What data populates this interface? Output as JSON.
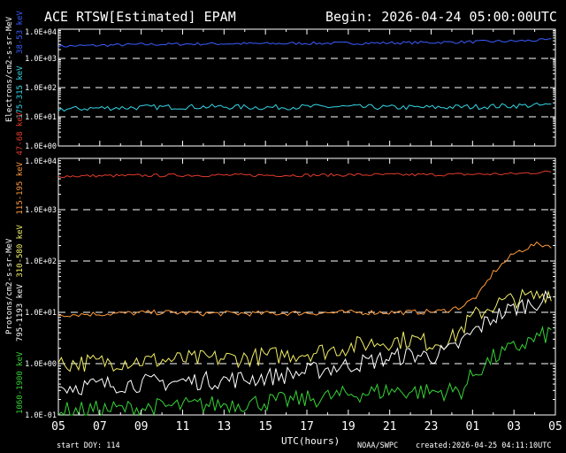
{
  "header": {
    "title": "ACE RTSW[Estimated] EPAM",
    "begin": "Begin: 2026-04-24 05:00:00UTC"
  },
  "footer": {
    "start_doy": "start DOY:  114",
    "agency": "NOAA/SWPC",
    "created": "created:2026-04-25 04:11:10UTC"
  },
  "colors": {
    "e_low": "#3a5cff",
    "e_high": "#33d6e6",
    "p1": "#e23a2a",
    "p2": "#ff9a3c",
    "p3": "#f2ee66",
    "p4": "#ffffff",
    "p5": "#35d435"
  },
  "chart_data": [
    {
      "type": "line",
      "name": "electrons",
      "ylabel": "Electrons/cm2-s-sr-MeV",
      "yscale": "log",
      "ylim": [
        1,
        10000
      ],
      "ytick_labels": [
        "1.0E+00",
        "1.0E+01",
        "1.0E+02",
        "1.0E+03",
        "1.0E+04"
      ],
      "grid_y": [
        10,
        100,
        1000
      ],
      "x_range_hours": [
        5,
        29
      ],
      "series": [
        {
          "name": "38-53 keV",
          "color": "#3a5cff",
          "x": [
            5,
            7,
            9,
            11,
            13,
            15,
            17,
            19,
            21,
            23,
            25,
            27,
            28.8
          ],
          "y": [
            2600,
            2800,
            3000,
            3100,
            3200,
            3200,
            3300,
            3300,
            3400,
            3500,
            3700,
            3900,
            4300
          ]
        },
        {
          "name": "175-315 keV",
          "color": "#33d6e6",
          "x": [
            5,
            7,
            9,
            11,
            13,
            15,
            17,
            19,
            21,
            23,
            25,
            27,
            28.8
          ],
          "y": [
            18,
            20,
            21,
            22,
            22,
            21,
            22,
            22,
            21,
            21,
            22,
            24,
            25
          ]
        }
      ]
    },
    {
      "type": "line",
      "name": "protons",
      "ylabel": "Protons/cm2-s-sr-MeV",
      "yscale": "log",
      "ylim": [
        0.1,
        10000
      ],
      "ytick_labels": [
        "1.0E-01",
        "1.0E+00",
        "1.0E+01",
        "1.0E+02",
        "1.0E+03",
        "1.0E+04"
      ],
      "grid_y": [
        1,
        10,
        100,
        1000
      ],
      "xlabel": "UTC(hours)",
      "x_range_hours": [
        5,
        29
      ],
      "xtick_labels": [
        "05",
        "07",
        "09",
        "11",
        "13",
        "15",
        "17",
        "19",
        "21",
        "23",
        "01",
        "03",
        "05"
      ],
      "series": [
        {
          "name": "47-68 keV",
          "color": "#e23a2a",
          "x": [
            5,
            8,
            11,
            14,
            17,
            20,
            23,
            25,
            27,
            28.8
          ],
          "y": [
            4500,
            4600,
            4700,
            4700,
            4700,
            4800,
            4800,
            4900,
            5000,
            5500
          ]
        },
        {
          "name": "115-195 keV",
          "color": "#ff9a3c",
          "x": [
            5,
            8,
            10,
            12,
            15,
            18,
            20,
            22,
            23.5,
            24.5,
            25.3,
            26,
            27,
            28,
            28.8
          ],
          "y": [
            9,
            9.5,
            10,
            9.5,
            9.5,
            9.8,
            10,
            10,
            10.5,
            13,
            22,
            60,
            140,
            210,
            200
          ]
        },
        {
          "name": "310-580 keV",
          "color": "#f2ee66",
          "x": [
            5,
            8,
            11,
            14,
            16,
            18,
            20,
            22,
            23,
            24,
            25,
            26,
            27,
            28,
            28.8
          ],
          "y": [
            1,
            1.1,
            1.2,
            1.3,
            1.5,
            1.8,
            2.5,
            3,
            2.5,
            3,
            8,
            14,
            18,
            20,
            25
          ]
        },
        {
          "name": "795-1193 keV",
          "color": "#ffffff",
          "x": [
            5,
            8,
            11,
            14,
            16,
            18,
            20,
            22,
            23,
            24,
            25,
            26,
            27,
            28,
            28.8
          ],
          "y": [
            0.35,
            0.4,
            0.45,
            0.5,
            0.6,
            0.8,
            1.1,
            1.5,
            1.4,
            1.8,
            4,
            8,
            12,
            16,
            18
          ]
        },
        {
          "name": "1060-1900 keV",
          "color": "#35d435",
          "x": [
            5,
            8,
            11,
            14,
            17,
            19,
            21,
            23,
            24.5,
            25,
            26,
            27,
            28,
            28.8
          ],
          "y": [
            0.12,
            0.13,
            0.15,
            0.17,
            0.2,
            0.25,
            0.3,
            0.28,
            0.3,
            0.6,
            1.3,
            2,
            3,
            4
          ]
        }
      ]
    }
  ]
}
